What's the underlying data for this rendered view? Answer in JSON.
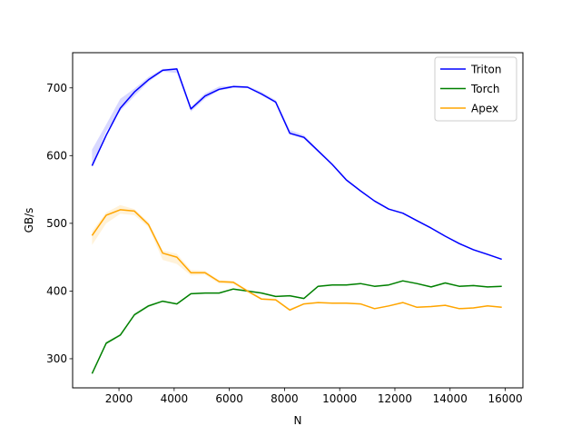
{
  "chart_data": {
    "type": "line",
    "title": "",
    "xlabel": "N",
    "ylabel": "GB/s",
    "xlim": [
      320,
      16640
    ],
    "ylim": [
      257,
      752
    ],
    "xticks": [
      2000,
      4000,
      6000,
      8000,
      10000,
      12000,
      14000,
      16000
    ],
    "xtick_labels": [
      "2000",
      "4000",
      "6000",
      "8000",
      "10000",
      "12000",
      "14000",
      "16000"
    ],
    "yticks": [
      300,
      400,
      500,
      600,
      700
    ],
    "ytick_labels": [
      "300",
      "400",
      "500",
      "600",
      "700"
    ],
    "grid": false,
    "legend_position": "top-right",
    "x": [
      1024,
      1536,
      2048,
      2560,
      3072,
      3584,
      4096,
      4608,
      5120,
      5632,
      6144,
      6656,
      7168,
      7680,
      8192,
      8704,
      9216,
      9728,
      10240,
      10752,
      11264,
      11776,
      12288,
      12800,
      13312,
      13824,
      14336,
      14848,
      15360,
      15872
    ],
    "series": [
      {
        "name": "Triton",
        "color": "#0000ff",
        "values": [
          585,
          630,
          670,
          694,
          712,
          726,
          728,
          669,
          688,
          698,
          702,
          701,
          691,
          679,
          633,
          627,
          607,
          587,
          564,
          548,
          533,
          521,
          515,
          504,
          493,
          481,
          470,
          461,
          454,
          447
        ],
        "band_low": [
          585,
          636,
          666,
          688,
          709,
          724,
          722,
          665,
          684,
          696,
          700,
          700,
          689,
          677,
          631,
          625,
          605,
          586,
          563,
          547,
          532,
          520,
          514,
          503,
          492,
          480,
          469,
          460,
          453,
          446
        ],
        "band_high": [
          609,
          646,
          684,
          699,
          716,
          728,
          729,
          672,
          692,
          702,
          703,
          703,
          694,
          682,
          638,
          630,
          609,
          589,
          566,
          549,
          534,
          522,
          516,
          505,
          494,
          482,
          471,
          462,
          455,
          448
        ]
      },
      {
        "name": "Torch",
        "color": "#008000",
        "values": [
          278,
          323,
          335,
          365,
          378,
          385,
          381,
          396,
          397,
          397,
          403,
          400,
          397,
          392,
          393,
          389,
          407,
          409,
          409,
          411,
          407,
          409,
          415,
          411,
          406,
          412,
          407,
          408,
          406,
          407
        ],
        "band_low": [
          278,
          321,
          333,
          363,
          376,
          384,
          380,
          395,
          396,
          396,
          402,
          399,
          396,
          391,
          392,
          388,
          406,
          408,
          408,
          410,
          406,
          408,
          414,
          410,
          405,
          411,
          406,
          407,
          405,
          406
        ],
        "band_high": [
          280,
          325,
          337,
          367,
          380,
          386,
          382,
          397,
          398,
          398,
          404,
          401,
          398,
          393,
          394,
          390,
          408,
          410,
          410,
          412,
          408,
          410,
          416,
          412,
          407,
          413,
          408,
          409,
          407,
          408
        ]
      },
      {
        "name": "Apex",
        "color": "#ffa500",
        "values": [
          482,
          512,
          520,
          518,
          498,
          456,
          450,
          427,
          427,
          414,
          413,
          400,
          388,
          387,
          372,
          381,
          383,
          382,
          382,
          381,
          374,
          378,
          383,
          376,
          377,
          379,
          374,
          375,
          378,
          376
        ],
        "band_low": [
          468,
          500,
          514,
          512,
          494,
          446,
          440,
          423,
          424,
          411,
          410,
          398,
          387,
          386,
          370,
          380,
          382,
          381,
          381,
          380,
          373,
          377,
          382,
          375,
          376,
          378,
          373,
          374,
          377,
          375
        ],
        "band_high": [
          488,
          516,
          527,
          521,
          502,
          460,
          455,
          431,
          430,
          416,
          415,
          402,
          390,
          389,
          374,
          382,
          384,
          383,
          383,
          382,
          375,
          379,
          384,
          377,
          378,
          380,
          375,
          376,
          379,
          377
        ]
      }
    ]
  }
}
